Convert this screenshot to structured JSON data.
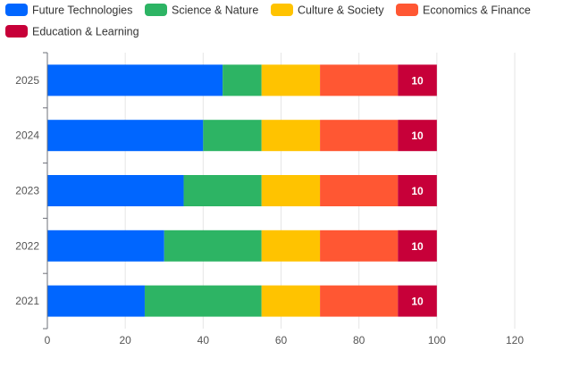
{
  "chart_data": {
    "type": "bar",
    "orientation": "horizontal",
    "stacked": true,
    "categories": [
      "2021",
      "2022",
      "2023",
      "2024",
      "2025"
    ],
    "series": [
      {
        "name": "Future Technologies",
        "color": "#0066ff",
        "values": [
          25,
          30,
          35,
          40,
          45
        ]
      },
      {
        "name": "Science & Nature",
        "color": "#2db464",
        "values": [
          30,
          25,
          20,
          15,
          10
        ]
      },
      {
        "name": "Culture & Society",
        "color": "#ffc300",
        "values": [
          15,
          15,
          15,
          15,
          15
        ]
      },
      {
        "name": "Economics & Finance",
        "color": "#ff5733",
        "values": [
          20,
          20,
          20,
          20,
          20
        ]
      },
      {
        "name": "Education & Learning",
        "color": "#c70039",
        "values": [
          10,
          10,
          10,
          10,
          10
        ]
      }
    ],
    "data_labels": {
      "series": "Education & Learning",
      "values": [
        "10",
        "10",
        "10",
        "10",
        "10"
      ]
    },
    "x_ticks": [
      "0",
      "20",
      "40",
      "60",
      "80",
      "100",
      "120"
    ],
    "xlim": [
      0,
      120
    ],
    "title": "",
    "xlabel": "",
    "ylabel": "",
    "grid": "vertical",
    "legend": "top-left"
  }
}
